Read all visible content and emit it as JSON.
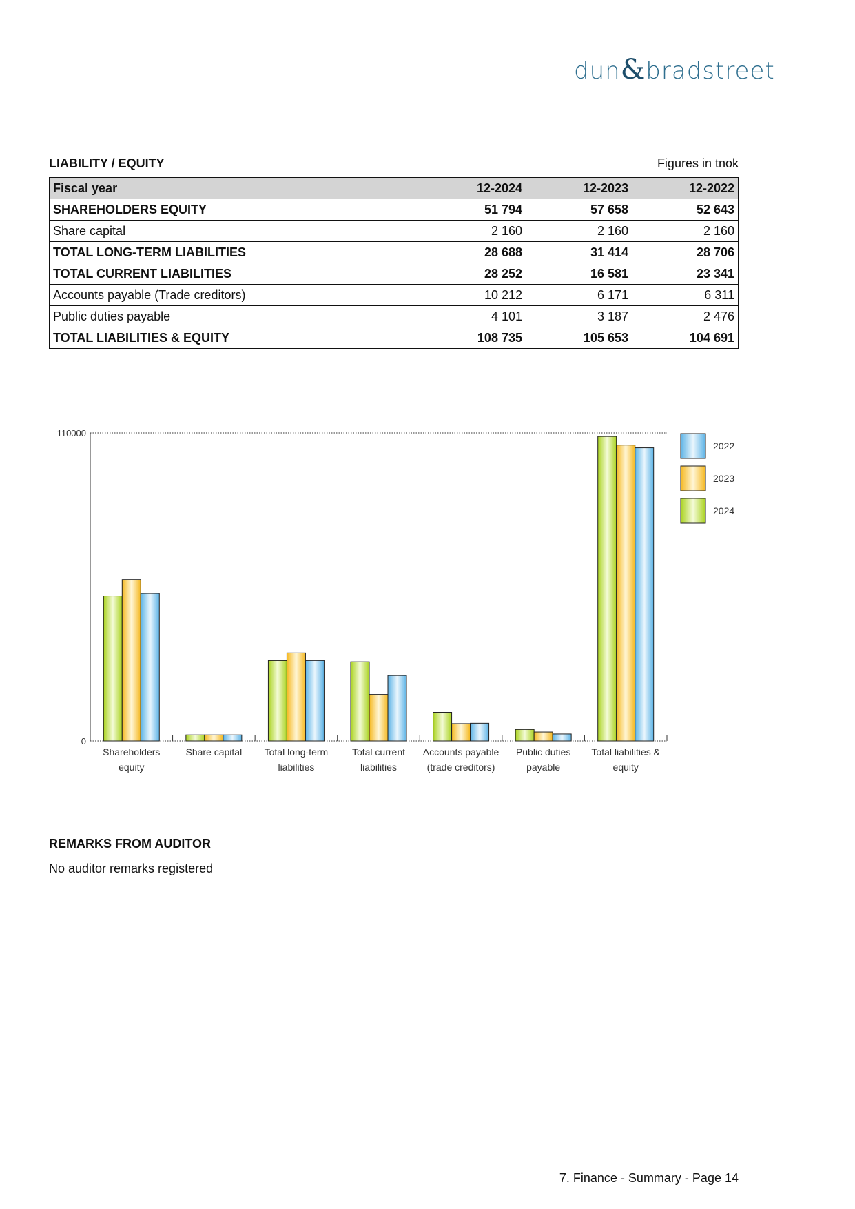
{
  "logo": {
    "left": "dun",
    "amp": "&",
    "right": "bradstreet"
  },
  "section": {
    "title": "LIABILITY / EQUITY",
    "units": "Figures in tnok"
  },
  "table": {
    "header": [
      "Fiscal year",
      "12-2024",
      "12-2023",
      "12-2022"
    ],
    "rows": [
      {
        "label": "SHAREHOLDERS EQUITY",
        "bold": true,
        "values": [
          "51 794",
          "57 658",
          "52 643"
        ]
      },
      {
        "label": "Share capital",
        "bold": false,
        "values": [
          "2 160",
          "2 160",
          "2 160"
        ]
      },
      {
        "label": "TOTAL LONG-TERM LIABILITIES",
        "bold": true,
        "values": [
          "28 688",
          "31 414",
          "28 706"
        ]
      },
      {
        "label": "TOTAL CURRENT LIABILITIES",
        "bold": true,
        "values": [
          "28 252",
          "16 581",
          "23 341"
        ]
      },
      {
        "label": "Accounts payable (Trade creditors)",
        "bold": false,
        "values": [
          "10 212",
          "6 171",
          "6 311"
        ]
      },
      {
        "label": "Public duties payable",
        "bold": false,
        "values": [
          "4 101",
          "3 187",
          "2 476"
        ]
      },
      {
        "label": "TOTAL LIABILITIES & EQUITY",
        "bold": true,
        "values": [
          "108 735",
          "105 653",
          "104 691"
        ]
      }
    ]
  },
  "chart_data": {
    "type": "bar",
    "categories": [
      [
        "Shareholders",
        "equity"
      ],
      [
        "Share capital",
        ""
      ],
      [
        "Total long-term",
        "liabilities"
      ],
      [
        "Total current",
        "liabilities"
      ],
      [
        "Accounts payable",
        "(trade creditors)"
      ],
      [
        "Public duties",
        "payable"
      ],
      [
        "Total liabilities &",
        "equity"
      ]
    ],
    "series": [
      {
        "name": "2024",
        "color": "#b5d92f",
        "values": [
          51794,
          2160,
          28688,
          28252,
          10212,
          4101,
          108735
        ]
      },
      {
        "name": "2023",
        "color": "#f7c232",
        "values": [
          57658,
          2160,
          31414,
          16581,
          6171,
          3187,
          105653
        ]
      },
      {
        "name": "2022",
        "color": "#6fbde8",
        "values": [
          52643,
          2160,
          28706,
          23341,
          6311,
          2476,
          104691
        ]
      }
    ],
    "legend_order": [
      "2022",
      "2023",
      "2024"
    ],
    "yticks": [
      "0",
      "110000"
    ],
    "ylim": [
      0,
      110000
    ],
    "legend": "right",
    "grid": false
  },
  "remarks": {
    "title": "REMARKS FROM AUDITOR",
    "text": "No auditor remarks registered"
  },
  "footer": "7. Finance - Summary - Page 14"
}
